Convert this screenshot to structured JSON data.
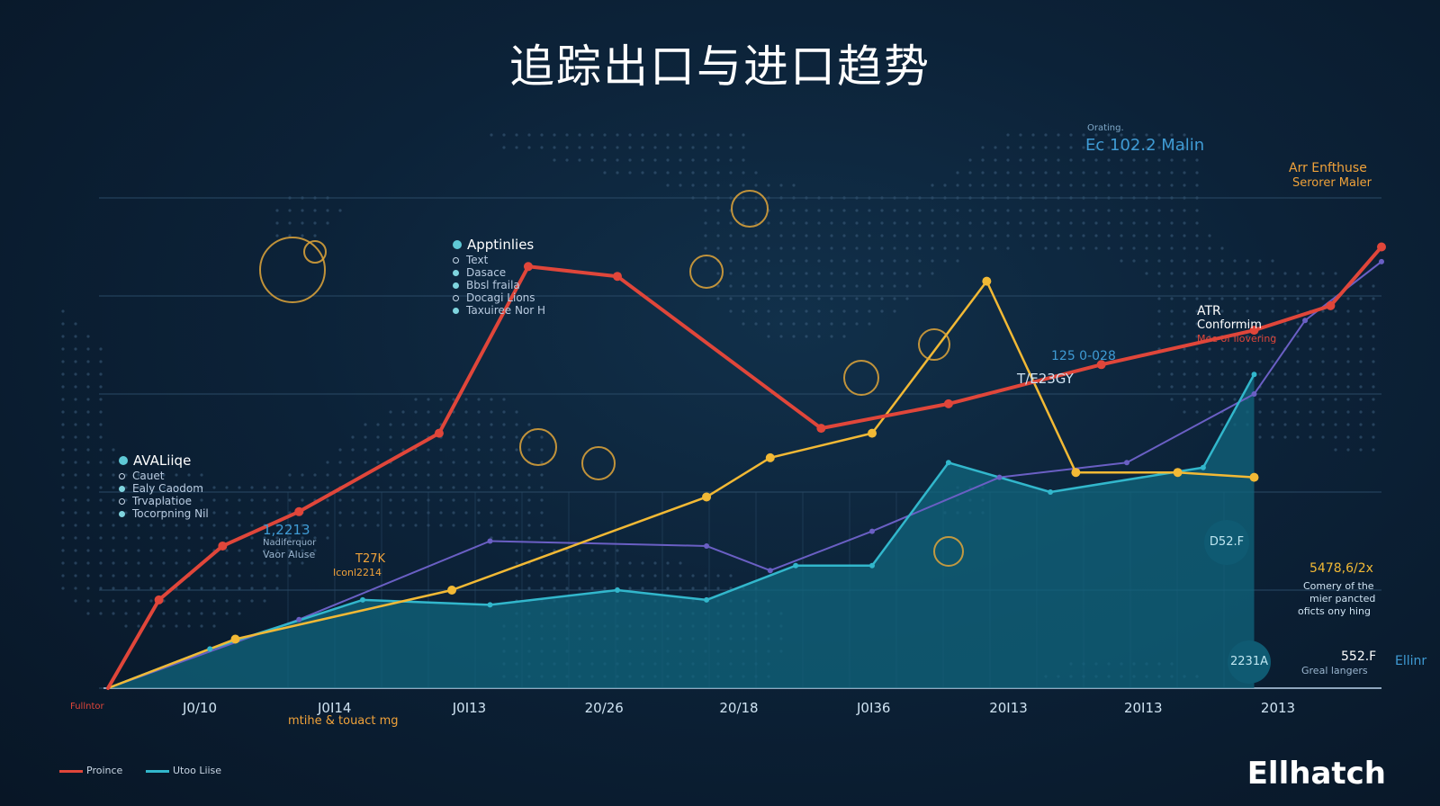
{
  "title": "追踪出口与进口趋势",
  "brand": "Ellhatch",
  "colors": {
    "red": "#e0463a",
    "yellow": "#f2b935",
    "purple": "#6a5fc4",
    "teal": "#32b7cc",
    "area_fill": "#10657e"
  },
  "panels": {
    "top": {
      "header": "Apptinlies",
      "items": [
        "Text",
        "Dasace",
        "Bbsl fraila",
        "Docagi Lions",
        "Taxuiree Nor H"
      ]
    },
    "left": {
      "header": "AVALiiqe",
      "items": [
        "Cauet",
        "Ealy Caodom",
        "Trvaplatioe",
        "Tocorpning Nil"
      ]
    }
  },
  "annotations": {
    "top_small": "Orating.",
    "top_big": "Ec 102.2 Malin",
    "top_right_1": "Arr Enfthuse",
    "top_right_2": "Serorer Maler",
    "atr_1": "ATR",
    "atr_2": "Conformim",
    "atr_3": "Mee of llovering",
    "mid_1": "125 0-028",
    "mid_2": "T/E23GY",
    "left_big": "1,2213",
    "left_small_1": "Nadiferquor",
    "left_small_2": "Vaor Aluse",
    "left_mid": "T27K",
    "left_mid_2": "Iconl2214",
    "right_val": "5478,6/2x",
    "right_desc_1": "Comery of the",
    "right_desc_2": "mier pancted",
    "right_desc_3": "oficts ony hing",
    "right_bottom_val": "552.F",
    "right_bottom_desc": "Greal langers",
    "right_edge": "Ellinr",
    "badge_1": "D52.F",
    "badge_2": "2231A",
    "icon_label_1": "ldfn",
    "icon_label_2": "IlL",
    "icon_label_3": "ILL",
    "icon_label_4": "lNLf",
    "sub_caption": "mtihe & touact mg",
    "axis_left_label": "Fullntor"
  },
  "legend": {
    "item_1": "Proince",
    "item_2": "Utoo Liise"
  },
  "chart_data": {
    "type": "line",
    "title": "追踪出口与进口趋势",
    "xlabel": "",
    "ylabel": "",
    "categories": [
      "J0/10",
      "J0I14",
      "J0I13",
      "20/26",
      "20/18",
      "J0I36",
      "20I13",
      "20I13",
      "2013"
    ],
    "ylim": [
      0,
      100
    ],
    "grid": true,
    "legend_position": "bottom-left",
    "series": [
      {
        "name": "Proince",
        "color": "#e0463a",
        "x": [
          0,
          0.4,
          0.9,
          1.5,
          2.6,
          3.3,
          4.0,
          5.6,
          6.6,
          7.8,
          9.0,
          9.6,
          10.0
        ],
        "values": [
          0,
          18,
          29,
          36,
          52,
          86,
          84,
          53,
          58,
          66,
          73,
          78,
          90
        ]
      },
      {
        "name": "Utoo Liise",
        "color": "#32b7cc",
        "x": [
          0,
          0.8,
          2.0,
          3.0,
          4.0,
          4.7,
          5.4,
          6.0,
          6.6,
          7.4,
          8.6,
          9.0
        ],
        "values": [
          0,
          8,
          18,
          17,
          20,
          18,
          25,
          25,
          46,
          40,
          45,
          64
        ]
      },
      {
        "name": "",
        "color": "#f2b935",
        "x": [
          0,
          1.0,
          2.7,
          4.7,
          5.2,
          6.0,
          6.9,
          7.6,
          8.4,
          9.0
        ],
        "values": [
          0,
          10,
          20,
          39,
          47,
          52,
          83,
          44,
          44,
          43
        ]
      },
      {
        "name": "",
        "color": "#6a5fc4",
        "x": [
          0,
          1.5,
          3.0,
          4.7,
          5.2,
          6.0,
          7.0,
          8.0,
          9.0,
          9.4,
          10.0
        ],
        "values": [
          0,
          14,
          30,
          29,
          24,
          32,
          43,
          46,
          60,
          75,
          87
        ]
      }
    ]
  }
}
